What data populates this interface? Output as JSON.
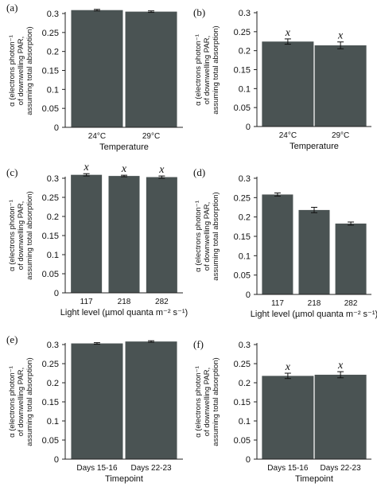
{
  "colors": {
    "bar": "#4a5353",
    "axis": "#222222",
    "error": "#111111"
  },
  "ylabel": [
    "α (electrons photon⁻¹",
    "of downwelling PAR,",
    "assuming total absorption)"
  ],
  "chart_data": [
    {
      "type": "bar",
      "panel_label": "(a)",
      "categories": [
        "24°C",
        "29°C"
      ],
      "values": [
        0.309,
        0.305
      ],
      "errors": [
        0.002,
        0.002
      ],
      "annotations": [
        "",
        ""
      ],
      "xlabel": "Temperature",
      "ylim": [
        0,
        0.3
      ],
      "yticks": [
        "0",
        "0.05",
        "0.1",
        "0.15",
        "0.2",
        "0.25",
        "0.3"
      ]
    },
    {
      "type": "bar",
      "panel_label": "(b)",
      "categories": [
        "24°C",
        "29°C"
      ],
      "values": [
        0.224,
        0.214
      ],
      "errors": [
        0.007,
        0.009
      ],
      "annotations": [
        "x",
        "x"
      ],
      "xlabel": "Temperature",
      "ylim": [
        0,
        0.3
      ],
      "yticks": [
        "0",
        "0.05",
        "0.1",
        "0.15",
        "0.2",
        "0.25",
        "0.3"
      ]
    },
    {
      "type": "bar",
      "panel_label": "(c)",
      "categories": [
        "117",
        "218",
        "282"
      ],
      "values": [
        0.309,
        0.306,
        0.303
      ],
      "errors": [
        0.003,
        0.002,
        0.003
      ],
      "annotations": [
        "x",
        "x",
        "x"
      ],
      "xlabel": "Light level (µmol quanta m⁻² s⁻¹)",
      "ylim": [
        0,
        0.3
      ],
      "yticks": [
        "0",
        "0.05",
        "0.1",
        "0.15",
        "0.2",
        "0.25",
        "0.3"
      ]
    },
    {
      "type": "bar",
      "panel_label": "(d)",
      "categories": [
        "117",
        "218",
        "282"
      ],
      "values": [
        0.258,
        0.218,
        0.183
      ],
      "errors": [
        0.004,
        0.007,
        0.004
      ],
      "annotations": [
        "",
        "",
        ""
      ],
      "xlabel": "Light level (µmol quanta m⁻² s⁻¹)",
      "ylim": [
        0,
        0.3
      ],
      "yticks": [
        "0",
        "0.05",
        "0.1",
        "0.15",
        "0.2",
        "0.25",
        "0.3"
      ]
    },
    {
      "type": "bar",
      "panel_label": "(e)",
      "categories": [
        "Days 15-16",
        "Days 22-23"
      ],
      "values": [
        0.303,
        0.308
      ],
      "errors": [
        0.002,
        0.002
      ],
      "annotations": [
        "",
        ""
      ],
      "xlabel": "Timepoint",
      "ylim": [
        0,
        0.3
      ],
      "yticks": [
        "0",
        "0.05",
        "0.1",
        "0.15",
        "0.2",
        "0.25",
        "0.3"
      ]
    },
    {
      "type": "bar",
      "panel_label": "(f)",
      "categories": [
        "Days 15-16",
        "Days 22-23"
      ],
      "values": [
        0.218,
        0.221
      ],
      "errors": [
        0.007,
        0.008
      ],
      "annotations": [
        "x",
        "x"
      ],
      "xlabel": "Timepoint",
      "ylim": [
        0,
        0.3
      ],
      "yticks": [
        "0",
        "0.05",
        "0.1",
        "0.15",
        "0.2",
        "0.25",
        "0.3"
      ]
    }
  ]
}
